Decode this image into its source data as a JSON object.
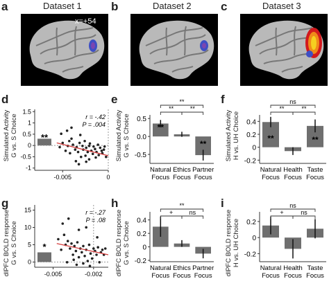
{
  "panel_letters": {
    "a": "a",
    "b": "b",
    "c": "c",
    "d": "d",
    "e": "e",
    "f": "f",
    "g": "g",
    "h": "h",
    "i": "i"
  },
  "datasets": [
    "Dataset 1",
    "Dataset 2",
    "Dataset 3"
  ],
  "brain_label": "x=+54",
  "row2": {
    "d": {
      "ylabel": [
        "Simulated Activity",
        "G vs. S Choice"
      ],
      "r": "r = -.42",
      "p": "P = .004",
      "sig": "**",
      "yticks": [
        "1.5",
        "1",
        "0.5",
        "0",
        "-0.5",
        "-1"
      ],
      "xticks": [
        "-0.005",
        "0"
      ]
    },
    "e": {
      "ylabel": [
        "Simulated Activity",
        "G vs. S Choice"
      ],
      "yticks": [
        "0.5",
        "0.0",
        "-0.5"
      ],
      "categories": [
        [
          "Natural",
          "Focus"
        ],
        [
          "Ethics",
          "Focus"
        ],
        [
          "Partner",
          "Focus"
        ]
      ],
      "values": [
        0.36,
        0.06,
        -0.52
      ],
      "errors": [
        0.1,
        0.07,
        0.15
      ],
      "bar_sig": [
        "**",
        "",
        "**"
      ],
      "brackets": [
        {
          "label": "**"
        },
        {
          "label": "**"
        },
        {
          "label": "**"
        }
      ]
    },
    "f": {
      "ylabel": [
        "Simulated Activity",
        "H vs. UH Choice"
      ],
      "yticks": [
        "0.4",
        "0.2",
        "0",
        "-0.2"
      ],
      "categories": [
        [
          "Natural",
          "Focus"
        ],
        [
          "Health",
          "Focus"
        ],
        [
          "Taste",
          "Focus"
        ]
      ],
      "values": [
        0.39,
        -0.06,
        0.33
      ],
      "errors": [
        0.08,
        0.06,
        0.1
      ],
      "bar_sig": [
        "**",
        "",
        "**"
      ],
      "brackets": [
        {
          "label": "**"
        },
        {
          "label": "**"
        },
        {
          "label": "ns"
        }
      ]
    }
  },
  "row3": {
    "g": {
      "ylabel": [
        "dlPFC BOLD response",
        "G vs. S Choice"
      ],
      "r": "r = -.27",
      "p": "P = .08",
      "sig": "*",
      "yticks": [
        "15",
        "10",
        "5",
        "0"
      ],
      "xticks": [
        "-0.005",
        "-0.002"
      ]
    },
    "h": {
      "ylabel": [
        "dlPFC BOLD response",
        "G vs. S Choice"
      ],
      "yticks": [
        "0.4",
        "0.2",
        "0",
        "-0.2"
      ],
      "categories": [
        [
          "Natural",
          "Focus"
        ],
        [
          "Ethics",
          "Focus"
        ],
        [
          "Partner",
          "Focus"
        ]
      ],
      "values": [
        0.3,
        0.05,
        -0.1
      ],
      "errors": [
        0.15,
        0.05,
        0.07
      ],
      "bar_sig": [
        "",
        "",
        ""
      ],
      "brackets": [
        {
          "label": "+"
        },
        {
          "label": "ns"
        },
        {
          "label": "**"
        }
      ]
    },
    "i": {
      "ylabel": [
        "dlPFC BOLD response",
        "H vs. UH Choice"
      ],
      "yticks": [
        "0.2",
        "0",
        "-0.2"
      ],
      "categories": [
        [
          "Natural",
          "Focus"
        ],
        [
          "Health",
          "Focus"
        ],
        [
          "Taste",
          "Focus"
        ]
      ],
      "values": [
        0.15,
        -0.14,
        0.11
      ],
      "errors": [
        0.11,
        0.12,
        0.12
      ],
      "bar_sig": [
        "",
        "",
        ""
      ],
      "brackets": [
        {
          "label": "+"
        },
        {
          "label": "ns"
        },
        {
          "label": "ns"
        }
      ]
    }
  },
  "colors": {
    "bar": "#6f6f6f",
    "fit_line": "#d43c3c",
    "blob_blue": "#3e4fc4",
    "blob_hot": "#f5d020"
  }
}
